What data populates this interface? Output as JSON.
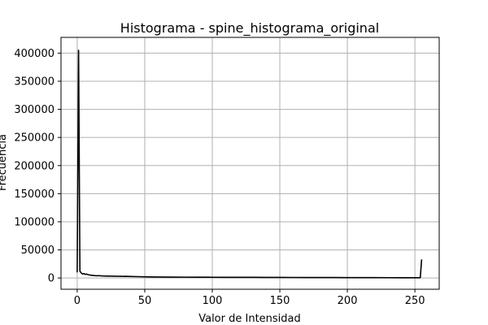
{
  "chart_data": {
    "type": "line",
    "title": "Histograma - spine_histograma_original",
    "xlabel": "Valor de Intensidad",
    "ylabel": "Frecuencia",
    "xlim": [
      -12,
      268
    ],
    "ylim": [
      -20000,
      428000
    ],
    "xticks": [
      0,
      50,
      100,
      150,
      200,
      250
    ],
    "yticks": [
      0,
      50000,
      100000,
      150000,
      200000,
      250000,
      300000,
      350000,
      400000
    ],
    "grid": true,
    "line_color": "#000000",
    "grid_color": "#b0b0b0",
    "series": [
      {
        "x": [
          0,
          1,
          2,
          3,
          4,
          5,
          6,
          7,
          8,
          9,
          10,
          12,
          14,
          16,
          18,
          20,
          22,
          24,
          26,
          28,
          30,
          32,
          34,
          36,
          38,
          40,
          45,
          50,
          55,
          60,
          70,
          80,
          90,
          100,
          110,
          120,
          130,
          140,
          150,
          160,
          170,
          180,
          190,
          200,
          210,
          220,
          230,
          240,
          250,
          253,
          254,
          255
        ],
        "y": [
          10000,
          405000,
          12000,
          9000,
          7000,
          8000,
          6500,
          7000,
          6000,
          5500,
          5000,
          4500,
          4000,
          4200,
          3800,
          3600,
          3400,
          3500,
          3200,
          3300,
          3000,
          3100,
          2900,
          3000,
          2800,
          2700,
          2400,
          2200,
          2000,
          1800,
          1600,
          1500,
          1400,
          1300,
          1250,
          1200,
          1150,
          1100,
          1000,
          950,
          900,
          850,
          800,
          750,
          700,
          650,
          600,
          550,
          500,
          500,
          600,
          33000
        ]
      }
    ]
  }
}
